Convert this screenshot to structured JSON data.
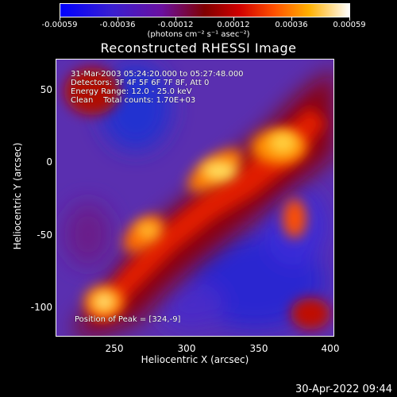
{
  "colorbar": {
    "ticks": [
      "-0.00059",
      "-0.00036",
      "-0.00012",
      "0.00012",
      "0.00036",
      "0.00059"
    ],
    "units_text": "(photons cm⁻² s⁻¹ asec⁻²)"
  },
  "image": {
    "title": "Reconstructed RHESSI Image",
    "xlabel": "Heliocentric X (arcsec)",
    "ylabel": "Heliocentric Y (arcsec)",
    "xticks": [
      "250",
      "300",
      "350",
      "400"
    ],
    "yticks": [
      "50",
      "0",
      "-50",
      "-100"
    ],
    "annotations": {
      "time_range": "31-Mar-2003 05:24:20.000 to 05:27:48.000",
      "detectors": "Detectors: 3F 4F 5F 6F 7F 8F, Att 0",
      "energy": "Energy Range: 12.0 - 25.0 keV",
      "clean": "Clean    Total counts: 1.70E+03",
      "peak": "Position of Peak = [324,-9]"
    }
  },
  "footer": {
    "timestamp": "30-Apr-2022 09:44"
  }
}
